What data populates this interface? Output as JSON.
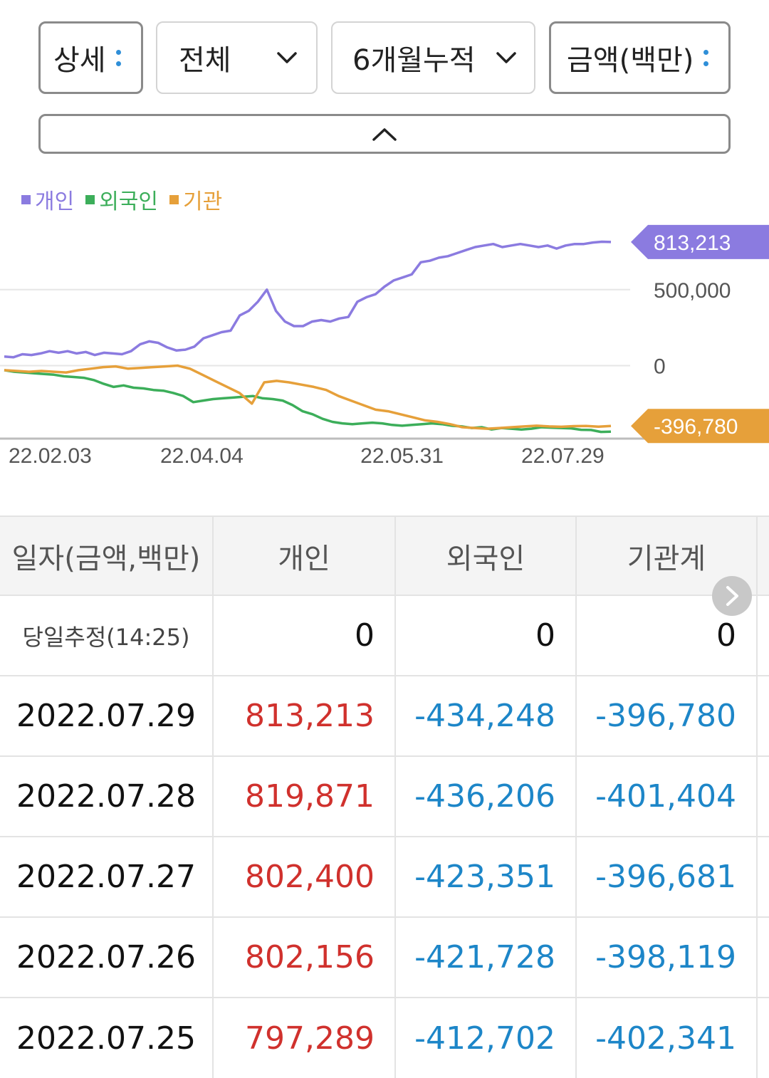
{
  "filters": {
    "view": "상세",
    "investor": "전체",
    "period": "6개월누적",
    "unit": "금액(백만)"
  },
  "legend": [
    {
      "name": "개인",
      "color": "#8b7be0"
    },
    {
      "name": "외국인",
      "color": "#3cae5a"
    },
    {
      "name": "기관",
      "color": "#e6a03a"
    }
  ],
  "chart_data": {
    "type": "line",
    "x_ticks": [
      "22.02.03",
      "22.04.04",
      "22.05.31",
      "22.07.29"
    ],
    "y_ticks": [
      500000,
      0
    ],
    "y_tick_labels": [
      "500,000",
      "0"
    ],
    "ylim": [
      -480000,
      1000000
    ],
    "grid": true,
    "series": [
      {
        "name": "개인",
        "color": "#8b7be0",
        "end_label": "813,213",
        "values": [
          60000,
          55000,
          75000,
          70000,
          80000,
          95000,
          85000,
          95000,
          80000,
          90000,
          70000,
          85000,
          80000,
          75000,
          95000,
          140000,
          160000,
          150000,
          120000,
          100000,
          105000,
          125000,
          180000,
          200000,
          220000,
          230000,
          330000,
          360000,
          420000,
          500000,
          360000,
          290000,
          260000,
          260000,
          290000,
          300000,
          290000,
          310000,
          320000,
          420000,
          450000,
          470000,
          520000,
          560000,
          580000,
          600000,
          680000,
          690000,
          710000,
          720000,
          740000,
          760000,
          780000,
          790000,
          800000,
          780000,
          790000,
          800000,
          790000,
          780000,
          790000,
          770000,
          790000,
          800000,
          800000,
          810000,
          815000,
          813213
        ]
      },
      {
        "name": "외국인",
        "color": "#3cae5a",
        "end_label": "",
        "values": [
          -30000,
          -40000,
          -45000,
          -50000,
          -55000,
          -60000,
          -70000,
          -75000,
          -80000,
          -95000,
          -120000,
          -140000,
          -130000,
          -145000,
          -150000,
          -160000,
          -165000,
          -180000,
          -200000,
          -240000,
          -230000,
          -220000,
          -215000,
          -210000,
          -205000,
          -200000,
          -215000,
          -220000,
          -230000,
          -260000,
          -300000,
          -320000,
          -350000,
          -370000,
          -380000,
          -385000,
          -380000,
          -375000,
          -380000,
          -390000,
          -395000,
          -390000,
          -385000,
          -380000,
          -385000,
          -395000,
          -400000,
          -410000,
          -405000,
          -420000,
          -410000,
          -415000,
          -420000,
          -415000,
          -405000,
          -408000,
          -410000,
          -412702,
          -421728,
          -423351,
          -436206,
          -434248
        ]
      },
      {
        "name": "기관",
        "color": "#e6a03a",
        "end_label": "-396,780",
        "values": [
          -30000,
          -35000,
          -40000,
          -35000,
          -40000,
          -45000,
          -30000,
          -20000,
          -10000,
          -5000,
          -20000,
          -15000,
          -10000,
          -5000,
          0,
          -20000,
          -60000,
          -100000,
          -140000,
          -180000,
          -250000,
          -110000,
          -100000,
          -110000,
          -125000,
          -140000,
          -160000,
          -200000,
          -230000,
          -260000,
          -290000,
          -300000,
          -320000,
          -340000,
          -360000,
          -370000,
          -385000,
          -405000,
          -410000,
          -415000,
          -410000,
          -405000,
          -400000,
          -395000,
          -400000,
          -402341,
          -398119,
          -396681,
          -401404,
          -396780
        ]
      }
    ]
  },
  "table": {
    "headers": [
      "일자(금액,백만)",
      "개인",
      "외국인",
      "기관계"
    ],
    "estimate_row": {
      "label": "당일추정(14:25)",
      "values": [
        "0",
        "0",
        "0"
      ]
    },
    "rows": [
      {
        "date": "2022.07.29",
        "individual": "813,213",
        "foreign": "-434,248",
        "institution": "-396,780"
      },
      {
        "date": "2022.07.28",
        "individual": "819,871",
        "foreign": "-436,206",
        "institution": "-401,404"
      },
      {
        "date": "2022.07.27",
        "individual": "802,400",
        "foreign": "-423,351",
        "institution": "-396,681"
      },
      {
        "date": "2022.07.26",
        "individual": "802,156",
        "foreign": "-421,728",
        "institution": "-398,119"
      },
      {
        "date": "2022.07.25",
        "individual": "797,289",
        "foreign": "-412,702",
        "institution": "-402,341"
      }
    ]
  }
}
